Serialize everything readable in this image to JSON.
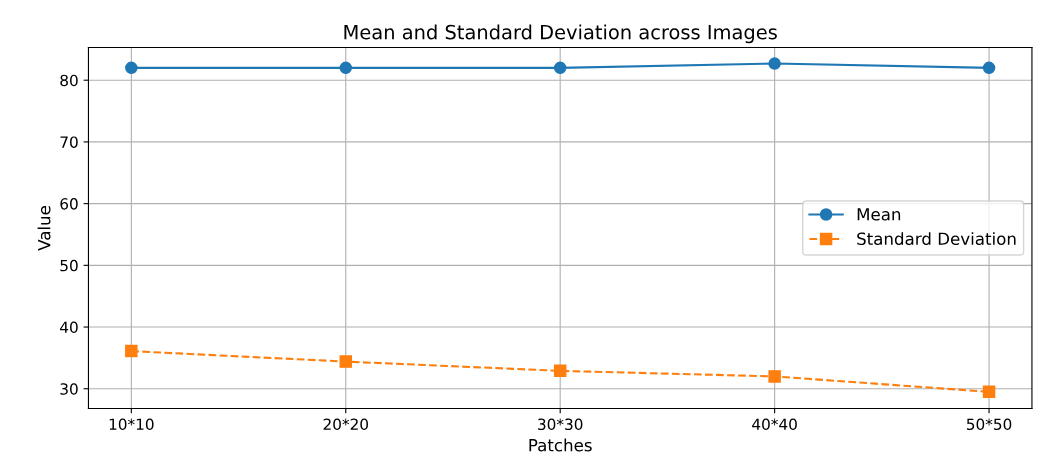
{
  "chart_data": {
    "type": "line",
    "title": "Mean and Standard Deviation across Images",
    "xlabel": "Patches",
    "ylabel": "Value",
    "categories": [
      "10*10",
      "20*20",
      "30*30",
      "40*40",
      "50*50"
    ],
    "series": [
      {
        "name": "Mean",
        "color": "#1f77b4",
        "values": [
          82.0,
          82.0,
          82.0,
          82.7,
          82.0
        ],
        "marker": "circle",
        "line_style": "solid"
      },
      {
        "name": "Standard Deviation",
        "color": "#ff7f0e",
        "values": [
          36.1,
          34.4,
          32.9,
          32.0,
          29.5
        ],
        "marker": "square",
        "line_style": "dashed"
      }
    ],
    "ylim": [
      26.8,
      85.3
    ],
    "yticks": [
      30,
      40,
      50,
      60,
      70,
      80
    ],
    "grid": true,
    "legend": "center right"
  }
}
